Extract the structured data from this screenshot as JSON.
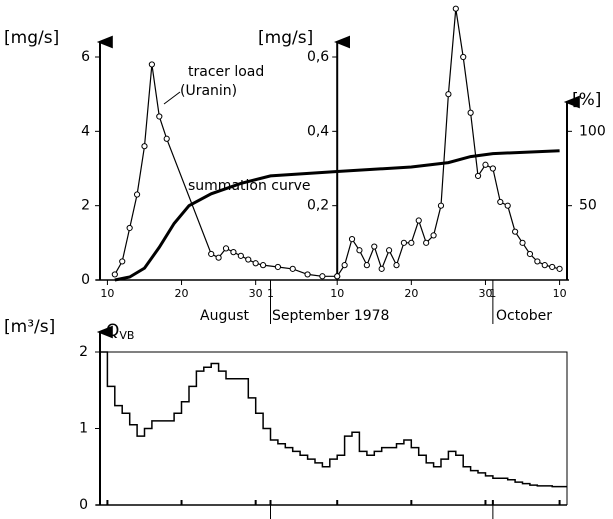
{
  "chart_data": [
    {
      "type": "line",
      "ylabel": "[mg/s]",
      "y2label": "[mg/s]",
      "y3label": "[%]",
      "annotations": [
        "tracer load",
        "(Uranin)"
      ],
      "months": [
        "August",
        "September 1978",
        "October"
      ],
      "xlim": [
        "1978-08-09",
        "1978-10-11"
      ],
      "xticks": [
        {
          "value": "1978-08-10",
          "label": "10"
        },
        {
          "value": "1978-08-20",
          "label": "20"
        },
        {
          "value": "1978-08-30",
          "label": "30"
        },
        {
          "value": "1978-09-01",
          "label": "1"
        },
        {
          "value": "1978-09-10",
          "label": "10"
        },
        {
          "value": "1978-09-20",
          "label": "20"
        },
        {
          "value": "1978-09-30",
          "label": "30"
        },
        {
          "value": "1978-10-01",
          "label": "1"
        },
        {
          "value": "1978-10-10",
          "label": "10"
        }
      ],
      "ylim": [
        0,
        6
      ],
      "yticks": [
        0,
        2,
        4,
        6
      ],
      "y2lim": [
        0,
        0.6
      ],
      "y2ticks": [
        {
          "value": 0.2,
          "label": "0,2"
        },
        {
          "value": 0.4,
          "label": "0,4"
        },
        {
          "value": 0.6,
          "label": "0,6"
        }
      ],
      "y3lim": [
        0,
        150
      ],
      "y3ticks": [
        50,
        100
      ],
      "series": [
        {
          "color": "#000000",
          "axis": "y",
          "markers": true,
          "x": [
            "1978-08-11",
            "1978-08-12",
            "1978-08-13",
            "1978-08-14",
            "1978-08-15",
            "1978-08-16",
            "1978-08-17",
            "1978-08-18",
            "1978-08-24",
            "1978-08-25",
            "1978-08-26",
            "1978-08-27",
            "1978-08-28",
            "1978-08-29",
            "1978-08-30",
            "1978-08-31",
            "1978-09-02",
            "1978-09-04",
            "1978-09-06",
            "1978-09-08",
            "1978-09-10"
          ],
          "values": [
            0.15,
            0.5,
            1.4,
            2.3,
            3.6,
            5.8,
            4.4,
            3.8,
            0.7,
            0.6,
            0.85,
            0.75,
            0.65,
            0.55,
            0.45,
            0.4,
            0.35,
            0.3,
            0.15,
            0.1,
            0.1
          ]
        },
        {
          "color": "#000000",
          "axis": "y2",
          "markers": true,
          "x": [
            "1978-09-10",
            "1978-09-11",
            "1978-09-12",
            "1978-09-13",
            "1978-09-14",
            "1978-09-15",
            "1978-09-16",
            "1978-09-17",
            "1978-09-18",
            "1978-09-19",
            "1978-09-20",
            "1978-09-21",
            "1978-09-22",
            "1978-09-23",
            "1978-09-24",
            "1978-09-25",
            "1978-09-26",
            "1978-09-27",
            "1978-09-28",
            "1978-09-29",
            "1978-09-30",
            "1978-10-01",
            "1978-10-02",
            "1978-10-03",
            "1978-10-04",
            "1978-10-05",
            "1978-10-06",
            "1978-10-07",
            "1978-10-08",
            "1978-10-09",
            "1978-10-10"
          ],
          "values": [
            0.01,
            0.04,
            0.11,
            0.08,
            0.04,
            0.09,
            0.03,
            0.08,
            0.04,
            0.1,
            0.1,
            0.16,
            0.1,
            0.12,
            0.2,
            0.5,
            0.73,
            0.6,
            0.45,
            0.28,
            0.31,
            0.3,
            0.21,
            0.2,
            0.13,
            0.1,
            0.07,
            0.05,
            0.04,
            0.035,
            0.03
          ]
        },
        {
          "name": "summation curve",
          "color": "#000000",
          "axis": "y3",
          "markers": false,
          "x": [
            "1978-08-11",
            "1978-08-13",
            "1978-08-15",
            "1978-08-17",
            "1978-08-19",
            "1978-08-21",
            "1978-08-24",
            "1978-08-28",
            "1978-09-01",
            "1978-09-10",
            "1978-09-20",
            "1978-09-25",
            "1978-09-28",
            "1978-10-01",
            "1978-10-10"
          ],
          "values": [
            0,
            2,
            8,
            22,
            38,
            50,
            58,
            65,
            70,
            73,
            76,
            79,
            83,
            85,
            87
          ]
        }
      ]
    },
    {
      "type": "step",
      "ylabel": "[m³/s]",
      "series_name": "Q",
      "series_subscript": "VB",
      "xlim": [
        "1978-08-09",
        "1978-10-11"
      ],
      "xticks": [
        "1978-08-10",
        "1978-08-20",
        "1978-08-30",
        "1978-09-01",
        "1978-09-10",
        "1978-09-20",
        "1978-09-30",
        "1978-10-01",
        "1978-10-10"
      ],
      "ylim": [
        0,
        2
      ],
      "yticks": [
        0,
        1,
        2
      ],
      "color": "#000000",
      "x": [
        "1978-08-09",
        "1978-08-10",
        "1978-08-11",
        "1978-08-12",
        "1978-08-13",
        "1978-08-14",
        "1978-08-15",
        "1978-08-16",
        "1978-08-17",
        "1978-08-18",
        "1978-08-19",
        "1978-08-20",
        "1978-08-21",
        "1978-08-22",
        "1978-08-23",
        "1978-08-24",
        "1978-08-25",
        "1978-08-26",
        "1978-08-27",
        "1978-08-28",
        "1978-08-29",
        "1978-08-30",
        "1978-08-31",
        "1978-09-01",
        "1978-09-02",
        "1978-09-03",
        "1978-09-04",
        "1978-09-05",
        "1978-09-06",
        "1978-09-07",
        "1978-09-08",
        "1978-09-09",
        "1978-09-10",
        "1978-09-11",
        "1978-09-12",
        "1978-09-13",
        "1978-09-14",
        "1978-09-15",
        "1978-09-16",
        "1978-09-17",
        "1978-09-18",
        "1978-09-19",
        "1978-09-20",
        "1978-09-21",
        "1978-09-22",
        "1978-09-23",
        "1978-09-24",
        "1978-09-25",
        "1978-09-26",
        "1978-09-27",
        "1978-09-28",
        "1978-09-29",
        "1978-09-30",
        "1978-10-01",
        "1978-10-02",
        "1978-10-03",
        "1978-10-04",
        "1978-10-05",
        "1978-10-06",
        "1978-10-07",
        "1978-10-08",
        "1978-10-09",
        "1978-10-10"
      ],
      "values": [
        2.0,
        1.55,
        1.3,
        1.2,
        1.05,
        0.9,
        1.0,
        1.1,
        1.1,
        1.1,
        1.2,
        1.35,
        1.55,
        1.75,
        1.8,
        1.85,
        1.75,
        1.65,
        1.65,
        1.65,
        1.4,
        1.2,
        1.0,
        0.85,
        0.8,
        0.75,
        0.7,
        0.65,
        0.6,
        0.55,
        0.5,
        0.6,
        0.65,
        0.9,
        0.95,
        0.7,
        0.65,
        0.7,
        0.75,
        0.75,
        0.8,
        0.85,
        0.75,
        0.65,
        0.55,
        0.5,
        0.6,
        0.7,
        0.65,
        0.5,
        0.45,
        0.42,
        0.38,
        0.35,
        0.35,
        0.33,
        0.3,
        0.28,
        0.26,
        0.25,
        0.25,
        0.24,
        0.24
      ]
    }
  ]
}
